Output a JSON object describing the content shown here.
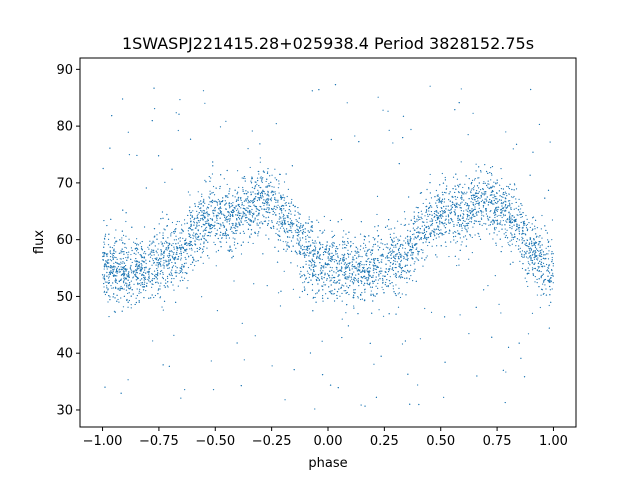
{
  "chart_data": {
    "type": "scatter",
    "title": "1SWASPJ221415.28+025938.4 Period 3828152.75s",
    "xlabel": "phase",
    "ylabel": "flux",
    "xlim": [
      -1.1,
      1.1
    ],
    "ylim": [
      27,
      92
    ],
    "xticks": [
      -1.0,
      -0.75,
      -0.5,
      -0.25,
      0.0,
      0.25,
      0.5,
      0.75,
      1.0
    ],
    "xtick_labels": [
      "−1.00",
      "−0.75",
      "−0.50",
      "−0.25",
      "0.00",
      "0.25",
      "0.50",
      "0.75",
      "1.00"
    ],
    "yticks": [
      30,
      40,
      50,
      60,
      70,
      80,
      90
    ],
    "ytick_labels": [
      "30",
      "40",
      "50",
      "60",
      "70",
      "80",
      "90"
    ],
    "grid": false,
    "marker_color": "#1f77b4",
    "phase_range": [
      -1.0,
      1.0
    ],
    "profile": [
      {
        "phase": 0.0,
        "flux": 55
      },
      {
        "phase": 0.05,
        "flux": 55
      },
      {
        "phase": 0.1,
        "flux": 54
      },
      {
        "phase": 0.15,
        "flux": 55
      },
      {
        "phase": 0.2,
        "flux": 55
      },
      {
        "phase": 0.25,
        "flux": 56
      },
      {
        "phase": 0.3,
        "flux": 57
      },
      {
        "phase": 0.35,
        "flux": 58
      },
      {
        "phase": 0.4,
        "flux": 61
      },
      {
        "phase": 0.45,
        "flux": 63
      },
      {
        "phase": 0.5,
        "flux": 64
      },
      {
        "phase": 0.55,
        "flux": 64
      },
      {
        "phase": 0.6,
        "flux": 64
      },
      {
        "phase": 0.65,
        "flux": 66
      },
      {
        "phase": 0.7,
        "flux": 67
      },
      {
        "phase": 0.75,
        "flux": 66
      },
      {
        "phase": 0.8,
        "flux": 64
      },
      {
        "phase": 0.85,
        "flux": 62
      },
      {
        "phase": 0.9,
        "flux": 58
      },
      {
        "phase": 0.95,
        "flux": 56
      },
      {
        "phase": 1.0,
        "flux": 55
      }
    ],
    "scatter_spread": 4,
    "outlier_flux_range": [
      30,
      88
    ]
  }
}
